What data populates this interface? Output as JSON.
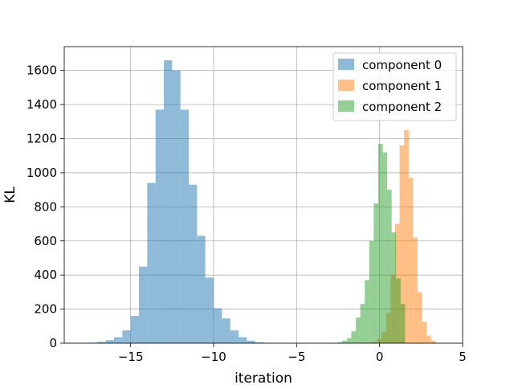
{
  "chart_data": {
    "type": "histogram",
    "xlabel": "iteration",
    "ylabel": "KL",
    "xlim": [
      -19,
      5
    ],
    "ylim": [
      0,
      1740
    ],
    "x_ticks": [
      -15,
      -10,
      -5,
      0,
      5
    ],
    "y_ticks": [
      0,
      200,
      400,
      600,
      800,
      1000,
      1200,
      1400,
      1600
    ],
    "grid": true,
    "legend_position": "upper right",
    "series": [
      {
        "name": "component 0",
        "color": "#1f77b4",
        "opacity": 0.5,
        "bin_width": 0.5,
        "bins": [
          [
            -17.25,
            3
          ],
          [
            -16.75,
            8
          ],
          [
            -16.25,
            18
          ],
          [
            -15.75,
            35
          ],
          [
            -15.25,
            75
          ],
          [
            -14.75,
            160
          ],
          [
            -14.25,
            450
          ],
          [
            -13.75,
            940
          ],
          [
            -13.25,
            1370
          ],
          [
            -12.75,
            1660
          ],
          [
            -12.25,
            1600
          ],
          [
            -11.75,
            1370
          ],
          [
            -11.25,
            930
          ],
          [
            -10.75,
            630
          ],
          [
            -10.25,
            385
          ],
          [
            -9.75,
            205
          ],
          [
            -9.25,
            145
          ],
          [
            -8.75,
            75
          ],
          [
            -8.25,
            35
          ],
          [
            -7.75,
            15
          ],
          [
            -7.25,
            5
          ]
        ]
      },
      {
        "name": "component 1",
        "color": "#ff7f0e",
        "opacity": 0.5,
        "bin_width": 0.27,
        "bins": [
          [
            -0.55,
            3
          ],
          [
            -0.28,
            8
          ],
          [
            -0.01,
            25
          ],
          [
            0.26,
            65
          ],
          [
            0.53,
            180
          ],
          [
            0.8,
            400
          ],
          [
            1.07,
            700
          ],
          [
            1.34,
            1160
          ],
          [
            1.61,
            1250
          ],
          [
            1.88,
            970
          ],
          [
            2.15,
            620
          ],
          [
            2.42,
            300
          ],
          [
            2.69,
            125
          ],
          [
            2.96,
            45
          ],
          [
            3.23,
            15
          ]
        ]
      },
      {
        "name": "component 2",
        "color": "#2ca02c",
        "opacity": 0.5,
        "bin_width": 0.27,
        "bins": [
          [
            -2.38,
            5
          ],
          [
            -2.11,
            15
          ],
          [
            -1.84,
            30
          ],
          [
            -1.57,
            70
          ],
          [
            -1.3,
            150
          ],
          [
            -1.03,
            230
          ],
          [
            -0.76,
            370
          ],
          [
            -0.49,
            600
          ],
          [
            -0.22,
            820
          ],
          [
            0.05,
            1170
          ],
          [
            0.32,
            1120
          ],
          [
            0.59,
            900
          ],
          [
            0.86,
            650
          ],
          [
            1.13,
            380
          ],
          [
            1.4,
            230
          ]
        ]
      }
    ]
  }
}
